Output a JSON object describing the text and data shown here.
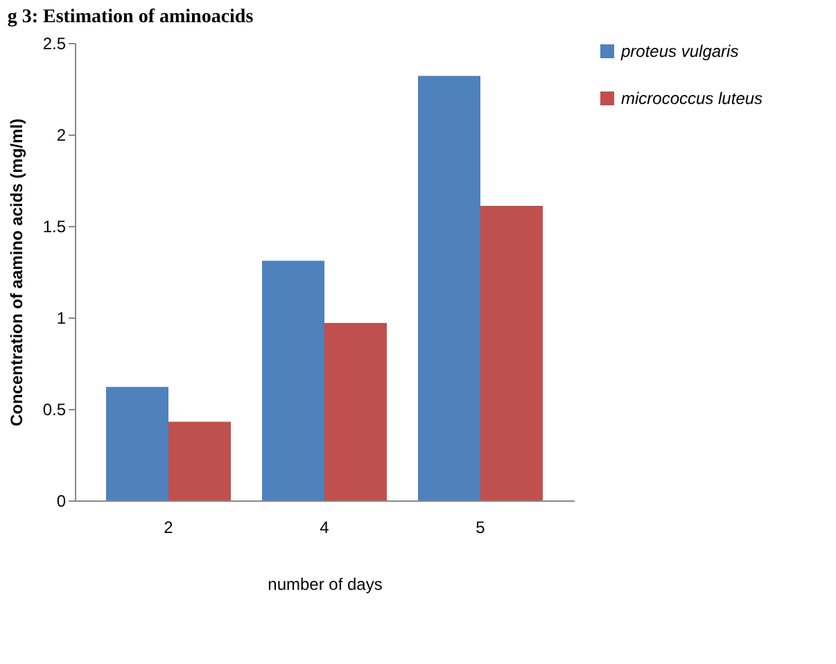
{
  "chart_data": {
    "type": "bar",
    "title": "g 3: Estimation of aminoacids",
    "xlabel": "number of days",
    "ylabel": "Concentration of aamino acids  (mg/ml)",
    "categories": [
      "2",
      "4",
      "5"
    ],
    "series": [
      {
        "name": "proteus vulgaris",
        "color": "#4f81bd",
        "values": [
          0.62,
          1.31,
          2.32
        ]
      },
      {
        "name": "micrococcus  luteus",
        "color": "#c0504d",
        "values": [
          0.43,
          0.97,
          1.61
        ]
      }
    ],
    "ylim": [
      0,
      2.5
    ],
    "yticks": [
      0,
      0.5,
      1,
      1.5,
      2,
      2.5
    ],
    "grid": false,
    "legend": "right"
  }
}
